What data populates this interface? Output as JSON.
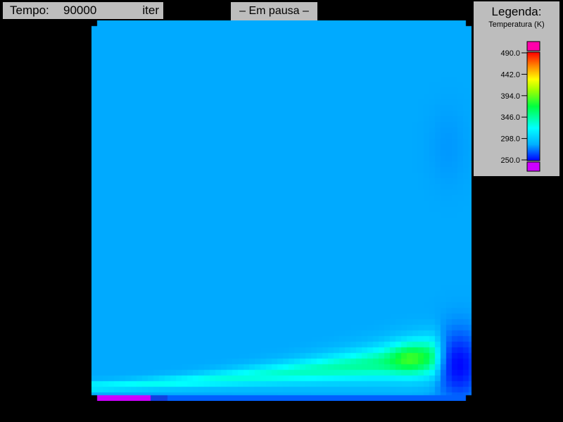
{
  "header": {
    "time_label": "Tempo:",
    "time_value": "90000",
    "time_unit": "iter",
    "status": "– Em pausa –"
  },
  "legend": {
    "title": "Legenda:",
    "subtitle": "Temperatura (K)",
    "ticks": [
      "490.0",
      "442.0",
      "394.0",
      "346.0",
      "298.0",
      "250.0"
    ],
    "over_color": "#ff00aa",
    "under_color": "#cc00ff",
    "colormap": [
      "#0000ff",
      "#00b0ff",
      "#00ffff",
      "#00ff40",
      "#a0ff00",
      "#ffff00",
      "#ff8000",
      "#ff0000"
    ]
  },
  "field": {
    "background": "#00a0ff",
    "heater_color": "#cc00ff",
    "cold_color": "#0030e0"
  }
}
